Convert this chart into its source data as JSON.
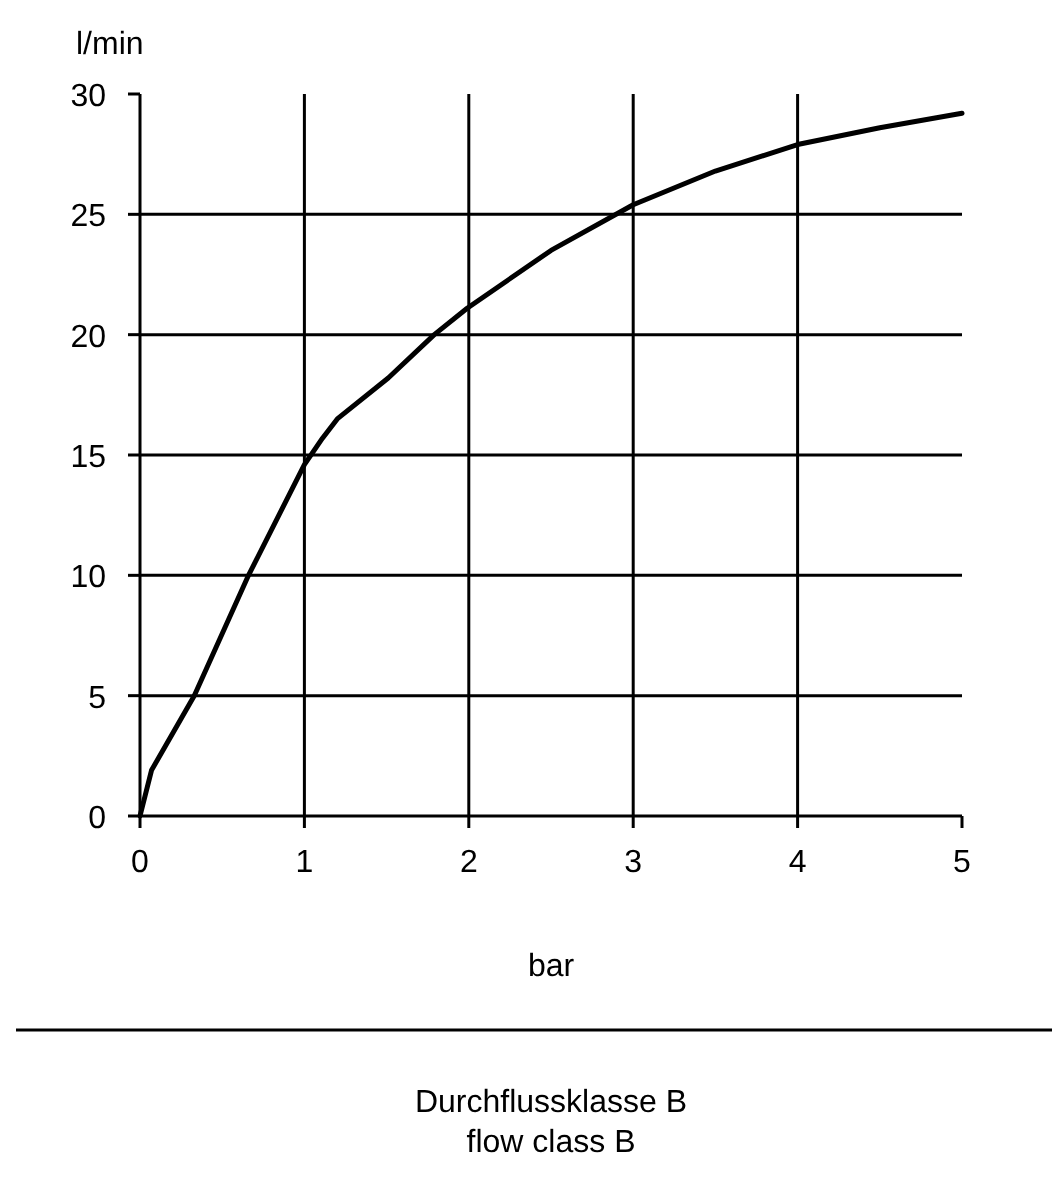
{
  "chart_data": {
    "type": "line",
    "xlabel": "bar",
    "ylabel": "l/min",
    "annotations": [
      "Durchflussklasse B",
      "flow class B"
    ],
    "x": [
      0,
      0.07,
      0.33,
      0.66,
      1.0,
      1.11,
      1.2,
      1.51,
      1.79,
      1.99,
      2.5,
      3.0,
      3.5,
      4.0,
      4.5,
      5.0
    ],
    "series": [
      {
        "color": "#000000",
        "values": [
          0,
          1.9,
          5,
          10,
          14.6,
          15.7,
          16.5,
          18.2,
          20.0,
          21.1,
          23.5,
          25.4,
          26.8,
          27.9,
          28.6,
          29.2
        ]
      }
    ],
    "xlim": [
      0,
      5
    ],
    "xticks": [
      0,
      1,
      2,
      3,
      4,
      5
    ],
    "ylim": [
      0,
      30
    ],
    "yticks": [
      0,
      5,
      10,
      15,
      20,
      25,
      30
    ],
    "grid": true,
    "marker": "none",
    "line_style": "solid"
  }
}
